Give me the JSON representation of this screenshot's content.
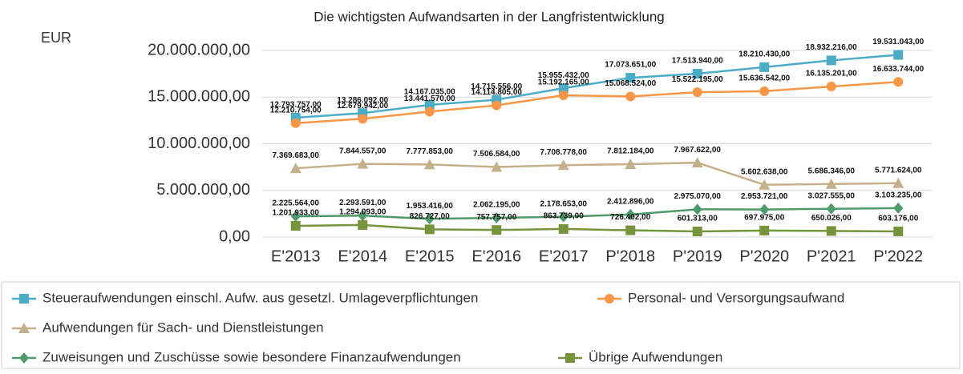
{
  "chart_data": {
    "type": "line",
    "title": "Die wichtigsten Aufwandsarten in der Langfristentwicklung",
    "y_label": "EUR",
    "categories": [
      "E'2013",
      "E'2014",
      "E'2015",
      "E'2016",
      "E'2017",
      "P'2018",
      "P'2019",
      "P'2020",
      "P'2021",
      "P'2022"
    ],
    "ylim": [
      0,
      20000000
    ],
    "yticks": [
      {
        "value": 0,
        "label": "0,00"
      },
      {
        "value": 5000000,
        "label": "5.000.000,00"
      },
      {
        "value": 10000000,
        "label": "10.000.000,00"
      },
      {
        "value": 15000000,
        "label": "15.000.000,00"
      },
      {
        "value": 20000000,
        "label": "20.000.000,00"
      }
    ],
    "series": [
      {
        "name": "Steueraufwendungen einschl. Aufw. aus gesetzl. Umlageverpflichtungen",
        "color": "#4bacc6",
        "marker": "square",
        "values": [
          12793757,
          13286092,
          14167035,
          14715556,
          15955432,
          17073651,
          17513940,
          18210430,
          18932216,
          19531043
        ],
        "value_labels": [
          "12.793.757,00",
          "13.286.092,00",
          "14.167.035,00",
          "14.715.556,00",
          "15.955.432,00",
          "17.073.651,00",
          "17.513.940,00",
          "18.210.430,00",
          "18.932.216,00",
          "19.531.043,00"
        ]
      },
      {
        "name": "Personal- und Versorgungsaufwand",
        "color": "#f79646",
        "marker": "circle",
        "values": [
          12210754,
          12679942,
          13441570,
          14114805,
          15192165,
          15068524,
          15522195,
          15636542,
          16135201,
          16633744
        ],
        "value_labels": [
          "12.210.754,00",
          "12.679.942,00",
          "13.441.570,00",
          "14.114.805,00",
          "15.192.165,00",
          "15.068.524,00",
          "15.522.195,00",
          "15.636.542,00",
          "16.135.201,00",
          "16.633.744,00"
        ]
      },
      {
        "name": "Aufwendungen für Sach- und Dienstleistungen",
        "color": "#c4b08a",
        "marker": "triangle",
        "values": [
          7369683,
          7844557,
          7777853,
          7506584,
          7708778,
          7812184,
          7967622,
          5602638,
          5686346,
          5771624
        ],
        "value_labels": [
          "7.369.683,00",
          "7.844.557,00",
          "7.777.853,00",
          "7.506.584,00",
          "7.708.778,00",
          "7.812.184,00",
          "7.967.622,00",
          "5.602.638,00",
          "5.686.346,00",
          "5.771.624,00"
        ]
      },
      {
        "name": "Zuweisungen und Zuschüsse sowie besondere Finanzaufwendungen",
        "color": "#4e9a6a",
        "marker": "diamond",
        "values": [
          2225564,
          2293591,
          1953416,
          2062195,
          2178653,
          2412896,
          2975070,
          2953721,
          3027555,
          3103235
        ],
        "value_labels": [
          "2.225.564,00",
          "2.293.591,00",
          "1.953.416,00",
          "2.062.195,00",
          "2.178.653,00",
          "2.412.896,00",
          "2.975.070,00",
          "2.953.721,00",
          "3.027.555,00",
          "3.103.235,00"
        ]
      },
      {
        "name": "Übrige Aufwendungen",
        "color": "#77933c",
        "marker": "square",
        "values": [
          1201933,
          1294093,
          826727,
          757757,
          863739,
          726402,
          601313,
          697975,
          650026,
          603176
        ],
        "value_labels": [
          "1.201.933,00",
          "1.294.093,00",
          "826.727,00",
          "757.757,00",
          "863.739,00",
          "726.402,00",
          "601.313,00",
          "697.975,00",
          "650.026,00",
          "603.176,00"
        ]
      }
    ]
  }
}
